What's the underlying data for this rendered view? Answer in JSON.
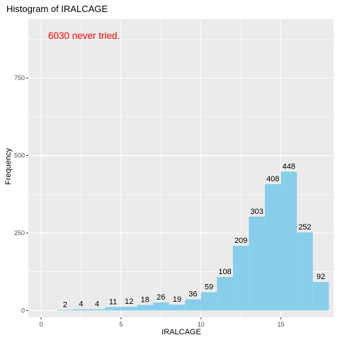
{
  "chart_data": {
    "type": "bar",
    "title": "Histogram of IRALCAGE",
    "xlabel": "IRALCAGE",
    "ylabel": "Frequency",
    "annotation": "6030 never tried.",
    "annotation_color": "#ff0000",
    "bar_color": "#87ceeb",
    "panel_color": "#ebebeb",
    "grid": true,
    "bin_width": 1,
    "bins": [
      {
        "x": 1.5,
        "value": 2
      },
      {
        "x": 2.5,
        "value": 4
      },
      {
        "x": 3.5,
        "value": 4
      },
      {
        "x": 4.5,
        "value": 11
      },
      {
        "x": 5.5,
        "value": 12
      },
      {
        "x": 6.5,
        "value": 18
      },
      {
        "x": 7.5,
        "value": 26
      },
      {
        "x": 8.5,
        "value": 19
      },
      {
        "x": 9.5,
        "value": 36
      },
      {
        "x": 10.5,
        "value": 59
      },
      {
        "x": 11.5,
        "value": 108
      },
      {
        "x": 12.5,
        "value": 209
      },
      {
        "x": 13.5,
        "value": 303
      },
      {
        "x": 14.5,
        "value": 408
      },
      {
        "x": 15.5,
        "value": 448
      },
      {
        "x": 16.5,
        "value": 252
      },
      {
        "x": 17.5,
        "value": 92
      }
    ],
    "xlim": [
      -0.8,
      18.3
    ],
    "ylim": [
      -22,
      940
    ],
    "x_ticks": [
      0,
      5,
      10,
      15
    ],
    "y_ticks": [
      0,
      250,
      500,
      750
    ]
  }
}
